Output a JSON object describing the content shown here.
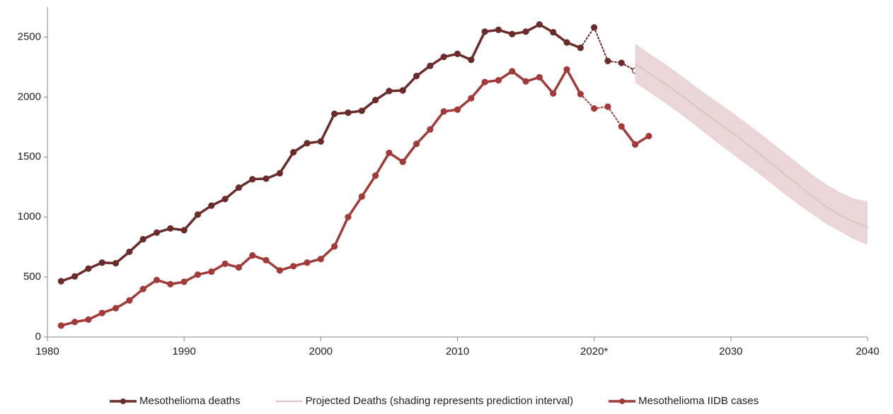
{
  "chart_data": {
    "type": "line",
    "xlim": [
      1980,
      2040
    ],
    "xticks": [
      1980,
      1990,
      2000,
      2010,
      {
        "value": 2020,
        "label": "2020*"
      },
      2030,
      2040
    ],
    "ylim": [
      0,
      2750
    ],
    "yticks": [
      0,
      500,
      1000,
      1500,
      2000,
      2500
    ],
    "series": [
      {
        "name": "Mesothelioma deaths",
        "color": "#6b2b2b",
        "dashed_between": [
          2019,
          2023
        ],
        "hollow_last": true,
        "x": [
          1981,
          1982,
          1983,
          1984,
          1985,
          1986,
          1987,
          1988,
          1989,
          1990,
          1991,
          1992,
          1993,
          1994,
          1995,
          1996,
          1997,
          1998,
          1999,
          2000,
          2001,
          2002,
          2003,
          2004,
          2005,
          2006,
          2007,
          2008,
          2009,
          2010,
          2011,
          2012,
          2013,
          2014,
          2015,
          2016,
          2017,
          2018,
          2019,
          2020,
          2021,
          2022,
          2023
        ],
        "values": [
          465,
          505,
          570,
          620,
          615,
          710,
          815,
          870,
          905,
          890,
          1020,
          1095,
          1150,
          1245,
          1315,
          1320,
          1365,
          1540,
          1615,
          1630,
          1860,
          1870,
          1885,
          1975,
          2050,
          2055,
          2175,
          2260,
          2335,
          2360,
          2310,
          2545,
          2560,
          2525,
          2545,
          2605,
          2540,
          2455,
          2410,
          2580,
          2300,
          2285,
          2220
        ]
      },
      {
        "name": "Projected Deaths (shading represents prediction interval)",
        "color": "#dfc3c5",
        "band_color": "#ead5d7",
        "x": [
          2023,
          2024,
          2025,
          2026,
          2027,
          2028,
          2029,
          2030,
          2031,
          2032,
          2033,
          2034,
          2035,
          2036,
          2037,
          2038,
          2039,
          2040
        ],
        "values": [
          2275,
          2200,
          2125,
          2045,
          1960,
          1875,
          1790,
          1710,
          1625,
          1535,
          1445,
          1350,
          1260,
          1170,
          1085,
          1015,
          960,
          915
        ],
        "lower": [
          2120,
          2045,
          1965,
          1885,
          1800,
          1710,
          1620,
          1535,
          1450,
          1365,
          1275,
          1185,
          1100,
          1020,
          940,
          880,
          815,
          770
        ],
        "upper": [
          2445,
          2365,
          2290,
          2210,
          2125,
          2040,
          1960,
          1880,
          1795,
          1710,
          1620,
          1530,
          1440,
          1350,
          1270,
          1205,
          1155,
          1130
        ]
      },
      {
        "name": "Mesothelioma IIDB cases",
        "color": "#a33a3a",
        "dashed_between": [
          2019,
          2022
        ],
        "x": [
          1981,
          1982,
          1983,
          1984,
          1985,
          1986,
          1987,
          1988,
          1989,
          1990,
          1991,
          1992,
          1993,
          1994,
          1995,
          1996,
          1997,
          1998,
          1999,
          2000,
          2001,
          2002,
          2003,
          2004,
          2005,
          2006,
          2007,
          2008,
          2009,
          2010,
          2011,
          2012,
          2013,
          2014,
          2015,
          2016,
          2017,
          2018,
          2019,
          2020,
          2021,
          2022,
          2023,
          2024
        ],
        "values": [
          95,
          125,
          145,
          200,
          240,
          305,
          400,
          475,
          440,
          460,
          520,
          545,
          610,
          580,
          680,
          640,
          555,
          590,
          620,
          650,
          755,
          1000,
          1170,
          1345,
          1535,
          1460,
          1610,
          1730,
          1880,
          1895,
          1990,
          2125,
          2140,
          2215,
          2130,
          2165,
          2030,
          2230,
          2025,
          1905,
          1920,
          1755,
          1605,
          1675
        ]
      }
    ]
  }
}
